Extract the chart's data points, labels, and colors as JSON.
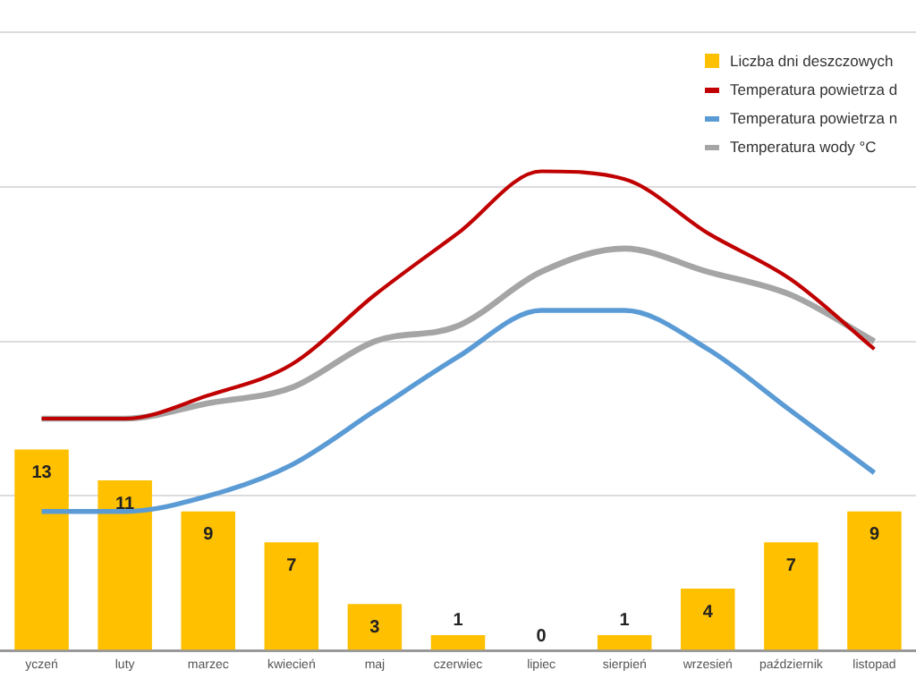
{
  "chart_data": {
    "type": "bar",
    "categories": [
      "yczeń",
      "luty",
      "marzec",
      "kwiecień",
      "maj",
      "czerwiec",
      "lipiec",
      "sierpień",
      "wrzesień",
      "październik",
      "listopad"
    ],
    "series": [
      {
        "name": "Liczba dni deszczowych",
        "color": "#ffc000",
        "values": [
          13,
          11,
          9,
          7,
          3,
          1,
          0,
          1,
          4,
          7,
          9
        ],
        "value_labels": [
          "13",
          "11",
          "9",
          "7",
          "3",
          "1",
          "0",
          "1",
          "4",
          "7",
          "9"
        ]
      },
      {
        "name": "Temperatura powietrza d",
        "type": "line",
        "color": "#c00000",
        "values": [
          15,
          15,
          16.5,
          18.5,
          23,
          27,
          31,
          30.5,
          27,
          24,
          19.5
        ]
      },
      {
        "name": "Temperatura powietrza n",
        "type": "line",
        "color": "#5b9bd5",
        "values": [
          9,
          9,
          10,
          12,
          15.5,
          19,
          22,
          22,
          19.5,
          15.5,
          11.5
        ]
      },
      {
        "name": "Temperatura wody °C",
        "type": "line",
        "color": "#a5a5a5",
        "values": [
          15,
          15,
          16,
          17,
          20,
          21,
          24.5,
          26,
          24.5,
          23,
          20
        ]
      }
    ],
    "ylim": [
      0,
      40
    ],
    "yticks": [
      {
        "value": 0,
        "label": null
      },
      {
        "value": 10,
        "label": null
      },
      {
        "value": 20,
        "label": null
      },
      {
        "value": 30,
        "label": null
      },
      {
        "value": 40,
        "label": null
      }
    ],
    "grid": "y",
    "legend": "top right",
    "marker": "none",
    "tick_labels": "x"
  }
}
